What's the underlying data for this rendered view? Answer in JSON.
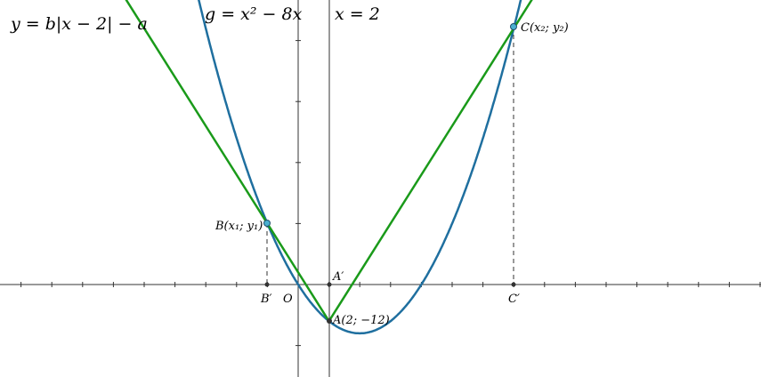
{
  "labels": {
    "line_equation": "y = b|x − 2| − a",
    "parabola_equation": "g = x² − 8x",
    "vertical_line_equation": "x = 2",
    "point_c": "C(x₂; y₂)",
    "point_b": "B(x₁; y₁)",
    "point_a": "A(2; −12)",
    "point_a_prime": "A′",
    "point_b_prime": "B′",
    "point_c_prime": "C′",
    "origin": "O"
  }
}
